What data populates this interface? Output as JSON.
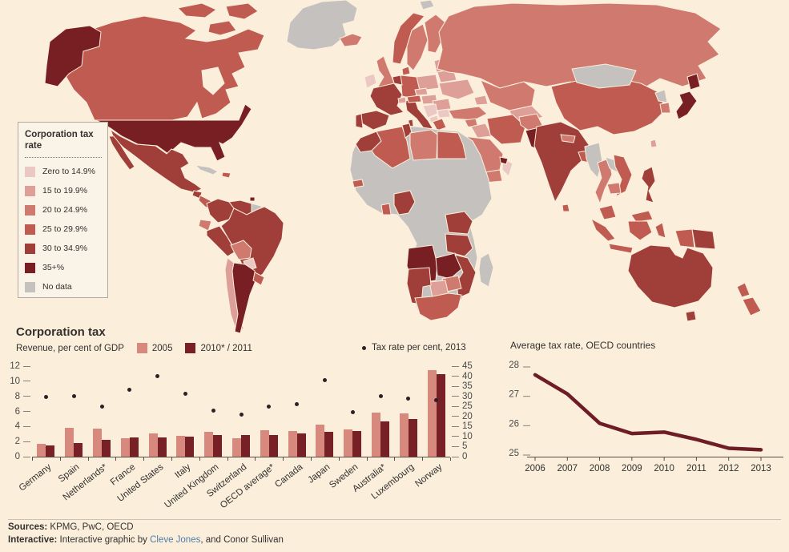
{
  "chart_data": [
    {
      "type": "choropleth",
      "legend_title": "Corporation tax\nrate",
      "bands": [
        {
          "id": "b1",
          "label": "Zero to 14.9%",
          "color": "#ecc8c4"
        },
        {
          "id": "b2",
          "label": "15 to 19.9%",
          "color": "#de9f99"
        },
        {
          "id": "b3",
          "label": "20 to 24.9%",
          "color": "#d0796f"
        },
        {
          "id": "b4",
          "label": "25 to 29.9%",
          "color": "#c05b51"
        },
        {
          "id": "b5",
          "label": "30 to 34.9%",
          "color": "#a03f3a"
        },
        {
          "id": "b6",
          "label": "35+%",
          "color": "#781f24"
        },
        {
          "id": "nd",
          "label": "No data",
          "color": "#c4c1be"
        }
      ],
      "countries": {
        "greenland": "nd",
        "svalbard": "nd",
        "arctic-island-1": "b4",
        "arctic-island-2": "b4",
        "arctic-island-3": "b4",
        "canada": "b4",
        "alaska": "b6",
        "usa": "b6",
        "mexico": "b5",
        "baja": "b5",
        "guatemala": "b5",
        "central-america": "b4",
        "cuba": "nd",
        "hispaniola": "b4",
        "trinidad": "b6",
        "colombia": "b5",
        "venezuela": "b5",
        "guyana": "nd",
        "french-guiana": "b5",
        "ecuador": "b3",
        "peru": "b5",
        "brazil": "b5",
        "bolivia": "b3",
        "paraguay": "b1",
        "chile": "b2",
        "argentina": "b6",
        "uruguay": "b4",
        "iceland": "b3",
        "ireland": "b1",
        "uk": "b3",
        "norway": "b4",
        "sweden": "b3",
        "finland": "b3",
        "denmark": "b4",
        "baltics": "b2",
        "poland": "b2",
        "germany": "b4",
        "benelux": "b5",
        "france": "b5",
        "spain": "b5",
        "portugal": "b5",
        "italy": "b5",
        "sicily": "b5",
        "sardinia": "b5",
        "switzerland": "b2",
        "austria": "b4",
        "czech": "b2",
        "hungary-slovakia": "b2",
        "romania": "b2",
        "bulgaria": "b1",
        "serbia-bosnia": "b1",
        "albania-macedonia": "b1",
        "greece": "b4",
        "ukraine": "b2",
        "belarus": "b2",
        "russia": "b3",
        "kazakhstan": "b3",
        "central-asia": "b2",
        "caucasus": "b2",
        "turkey": "b3",
        "syria": "b3",
        "iraq": "b2",
        "iran": "b4",
        "saudi-arabia": "b3",
        "yemen": "b3",
        "oman": "b1",
        "uae": "b6",
        "afghanistan": "b3",
        "pakistan": "b6",
        "india": "b5",
        "nepal": "b3",
        "bangladesh": "b4",
        "sri-lanka": "b4",
        "china": "b4",
        "mongolia": "nd",
        "north-korea": "nd",
        "south-korea": "b3",
        "japan": "b6",
        "taiwan": "b2",
        "myanmar": "nd",
        "thailand": "b3",
        "laos": "nd",
        "vietnam": "b4",
        "cambodia": "b3",
        "malaysia-peninsula": "b4",
        "malaysia-borneo": "b4",
        "philippines": "b5",
        "sumatra": "b4",
        "java": "b4",
        "borneo-indonesia": "b4",
        "sulawesi": "b4",
        "west-papua": "b4",
        "papua-new-guinea": "b5",
        "australia": "b5",
        "tasmania": "b5",
        "new-zealand-north": "b4",
        "new-zealand-south": "b4",
        "africa-no-data-base": "nd",
        "morocco": "b5",
        "algeria": "b4",
        "tunisia": "b5",
        "libya": "b3",
        "egypt": "b4",
        "senegal": "b4",
        "ghana": "b4",
        "nigeria": "b5",
        "kenya-uganda": "b5",
        "tanzania": "b5",
        "angola": "b6",
        "zambia": "b6",
        "mozambique": "b5",
        "zimbabwe": "b3",
        "botswana": "b2",
        "namibia": "b5",
        "south-africa": "b4",
        "madagascar": "nd"
      }
    },
    {
      "type": "bar",
      "title": "Corporation tax",
      "ylabel_left": "Revenue, per cent of GDP",
      "categories": [
        "Germany",
        "Spain",
        "Netherlands*",
        "France",
        "United States",
        "Italy",
        "United Kingdom",
        "Switzerland",
        "OECD average*",
        "Canada",
        "Japan",
        "Sweden",
        "Australia*",
        "Luxembourg",
        "Norway"
      ],
      "series": [
        {
          "name": "2005",
          "color": "#d8897d",
          "values": [
            1.7,
            3.8,
            3.7,
            2.4,
            3.1,
            2.8,
            3.3,
            2.4,
            3.5,
            3.4,
            4.2,
            3.6,
            5.8,
            5.7,
            11.5
          ]
        },
        {
          "name": "2010* / 2011",
          "color": "#772025",
          "values": [
            1.5,
            1.8,
            2.2,
            2.5,
            2.6,
            2.7,
            2.9,
            2.9,
            2.9,
            3.1,
            3.3,
            3.4,
            4.7,
            5.0,
            10.9
          ]
        }
      ],
      "dot_series": {
        "name": "Tax rate per cent, 2013",
        "color": "#2a2226",
        "values": [
          29.5,
          30,
          25,
          33.3,
          40,
          31.4,
          23,
          21,
          25,
          26,
          38,
          22,
          30,
          29,
          28
        ]
      },
      "left_axis": {
        "ticks": [
          12,
          10,
          8,
          6,
          4,
          2,
          0
        ],
        "range": [
          0,
          12
        ]
      },
      "right_axis": {
        "ticks": [
          45,
          40,
          35,
          30,
          25,
          20,
          15,
          10,
          5,
          0
        ],
        "range": [
          0,
          45
        ]
      }
    },
    {
      "type": "line",
      "title": "Average tax rate, OECD countries",
      "x": [
        2006,
        2007,
        2008,
        2009,
        2010,
        2011,
        2012,
        2013
      ],
      "values": [
        27.65,
        27.0,
        26.0,
        25.65,
        25.7,
        25.45,
        25.15,
        25.1
      ],
      "ylim": [
        25,
        28
      ],
      "yticks": [
        28,
        27,
        26,
        25
      ],
      "color": "#6e1c26"
    }
  ],
  "map_legend_title": "Corporation tax rate",
  "footer": {
    "sources_label": "Sources:",
    "sources_text": " KPMG, PwC, OECD",
    "interactive_label": "Interactive:",
    "interactive_prefix": " Interactive graphic by ",
    "link_text": "Cleve Jones",
    "interactive_suffix": ", and Conor Sullivan",
    "link_color": "#4d7ca9"
  },
  "colors": {
    "background": "#fbefdc",
    "axis": "#5a4d42",
    "tick_text": "#4a4a4a"
  }
}
